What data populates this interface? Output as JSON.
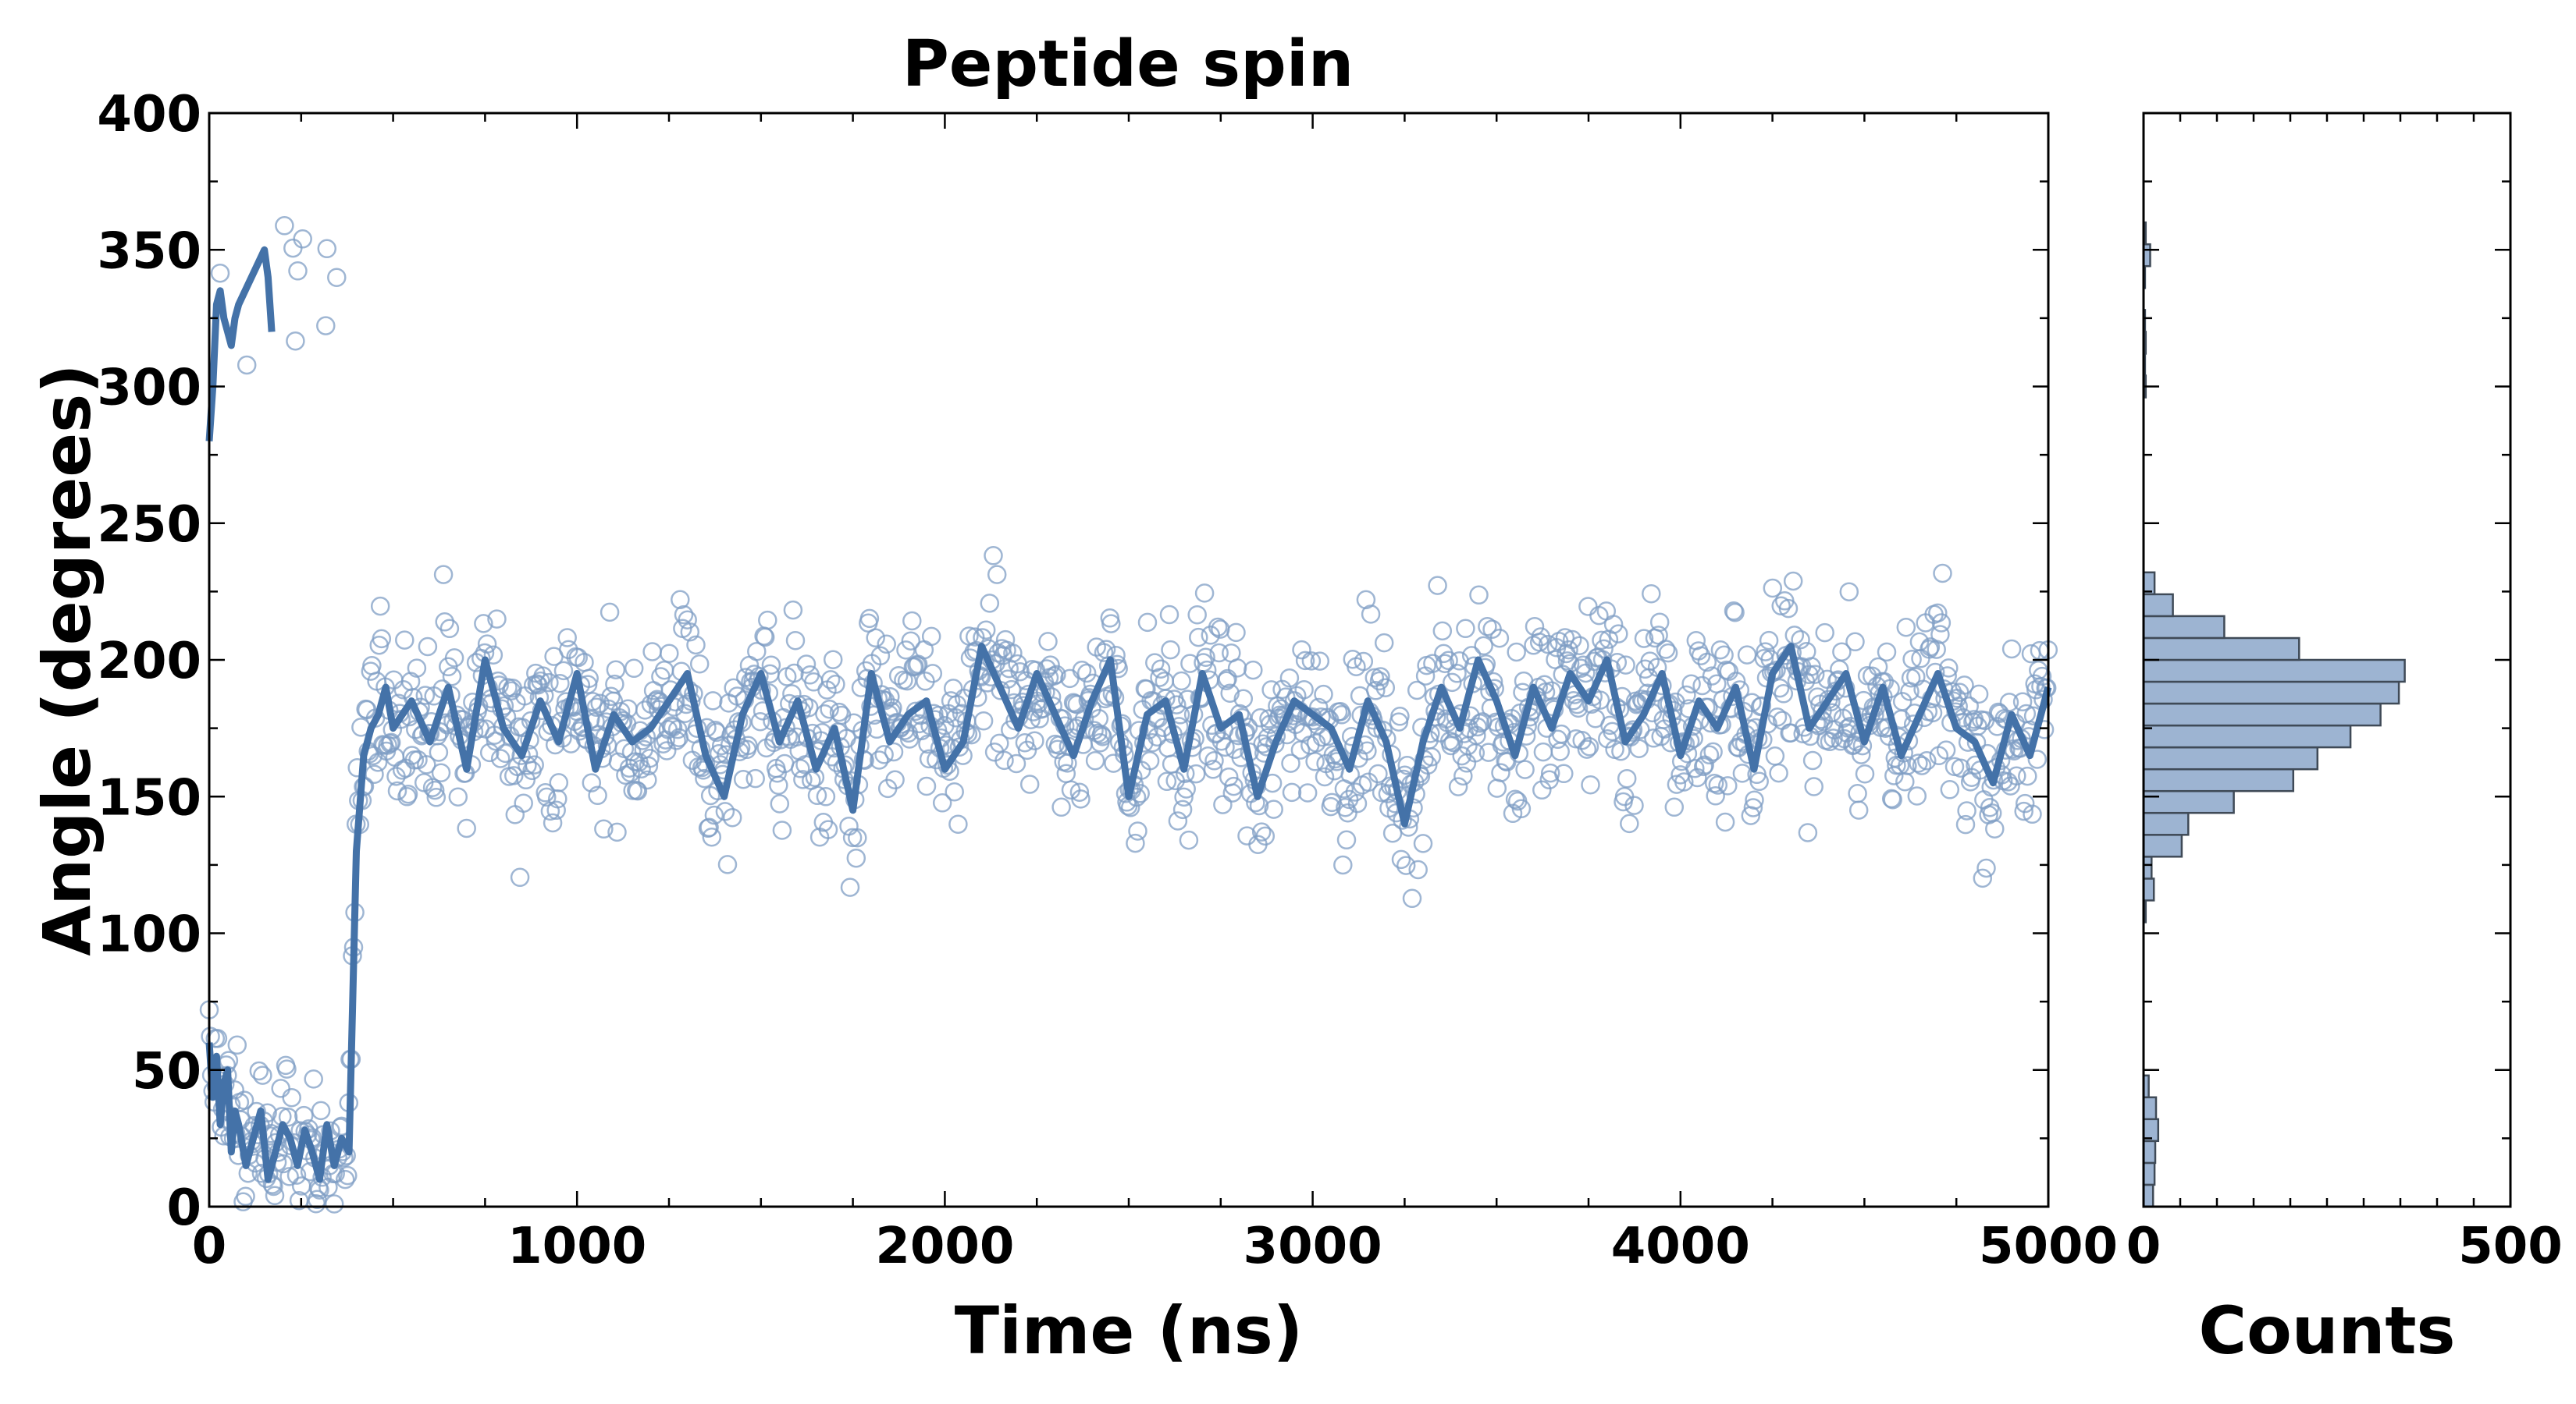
{
  "colors": {
    "accent": "#4472a8",
    "scatter_edge": "#7f9ec4",
    "hist_fill": "#9db4d2",
    "hist_edge": "#3f4a57",
    "frame": "#000000"
  },
  "chart_data": [
    {
      "type": "scatter",
      "title": "Peptide spin",
      "xlabel": "Time (ns)",
      "ylabel": "Angle (degrees)",
      "xlim": [
        0,
        5000
      ],
      "ylim": [
        0,
        400
      ],
      "x_ticks": [
        "0",
        "1000",
        "2000",
        "3000",
        "4000",
        "5000"
      ],
      "y_ticks": [
        "0",
        "50",
        "100",
        "150",
        "200",
        "250",
        "300",
        "350",
        "400"
      ],
      "grid": false,
      "legend": "none",
      "description": "Open-circle scatter of angle samples with a thick smoothed running-average line. ~0-380 ns angle sits near 0-60 (wrapping to 300-360); at ~400 ns it rises sharply to ~180 where it fluctuates 120-240 until 5000 ns.",
      "series": [
        {
          "name": "running average",
          "x": [
            0,
            10,
            20,
            30,
            40,
            50,
            60,
            70,
            80,
            100,
            120,
            140,
            160,
            180,
            200,
            220,
            240,
            260,
            280,
            300,
            320,
            340,
            360,
            380,
            400,
            420,
            440,
            460,
            480,
            500,
            550,
            600,
            650,
            700,
            750,
            800,
            850,
            900,
            950,
            1000,
            1050,
            1100,
            1150,
            1200,
            1250,
            1300,
            1350,
            1400,
            1450,
            1500,
            1550,
            1600,
            1650,
            1700,
            1750,
            1800,
            1850,
            1900,
            1950,
            2000,
            2050,
            2100,
            2150,
            2200,
            2250,
            2300,
            2350,
            2400,
            2450,
            2500,
            2550,
            2600,
            2650,
            2700,
            2750,
            2800,
            2850,
            2900,
            2950,
            3000,
            3050,
            3100,
            3150,
            3200,
            3250,
            3300,
            3350,
            3400,
            3450,
            3500,
            3550,
            3600,
            3650,
            3700,
            3750,
            3800,
            3850,
            3900,
            3950,
            4000,
            4050,
            4100,
            4150,
            4200,
            4250,
            4300,
            4350,
            4400,
            4450,
            4500,
            4550,
            4600,
            4650,
            4700,
            4750,
            4800,
            4850,
            4900,
            4950,
            5000
          ],
          "y": [
            60,
            40,
            55,
            30,
            45,
            50,
            20,
            35,
            30,
            15,
            25,
            35,
            10,
            20,
            30,
            25,
            15,
            28,
            20,
            10,
            30,
            15,
            25,
            20,
            130,
            165,
            175,
            180,
            190,
            175,
            185,
            170,
            190,
            160,
            200,
            175,
            165,
            185,
            170,
            195,
            160,
            180,
            170,
            175,
            185,
            195,
            165,
            150,
            180,
            195,
            170,
            185,
            160,
            175,
            145,
            195,
            170,
            180,
            185,
            160,
            170,
            205,
            190,
            175,
            195,
            180,
            165,
            185,
            200,
            150,
            180,
            185,
            160,
            195,
            175,
            180,
            150,
            170,
            185,
            180,
            175,
            160,
            185,
            170,
            140,
            170,
            190,
            175,
            200,
            185,
            165,
            190,
            175,
            195,
            185,
            200,
            170,
            180,
            195,
            165,
            185,
            175,
            190,
            160,
            195,
            205,
            175,
            185,
            195,
            170,
            190,
            165,
            180,
            195,
            175,
            170,
            155,
            180,
            165,
            190
          ]
        },
        {
          "name": "early wrapped segment",
          "x": [
            0,
            10,
            20,
            30,
            40,
            50,
            60,
            70,
            80,
            150,
            160,
            170
          ],
          "y": [
            280,
            300,
            330,
            335,
            325,
            320,
            315,
            325,
            330,
            350,
            340,
            320
          ]
        }
      ]
    },
    {
      "type": "bar",
      "orientation": "horizontal",
      "xlabel": "Counts",
      "xlim": [
        0,
        500
      ],
      "x_ticks": [
        "0",
        "500"
      ],
      "ylim": [
        0,
        400
      ],
      "bin_width": 8,
      "bins": [
        [
          0,
          13
        ],
        [
          8,
          15
        ],
        [
          16,
          16
        ],
        [
          24,
          20
        ],
        [
          32,
          17
        ],
        [
          40,
          7
        ],
        [
          104,
          3
        ],
        [
          112,
          14
        ],
        [
          120,
          11
        ],
        [
          128,
          52
        ],
        [
          136,
          61
        ],
        [
          144,
          123
        ],
        [
          152,
          204
        ],
        [
          160,
          237
        ],
        [
          168,
          282
        ],
        [
          176,
          323
        ],
        [
          184,
          348
        ],
        [
          192,
          356
        ],
        [
          200,
          212
        ],
        [
          208,
          110
        ],
        [
          216,
          40
        ],
        [
          224,
          15
        ],
        [
          296,
          3
        ],
        [
          304,
          2
        ],
        [
          312,
          3
        ],
        [
          320,
          2
        ],
        [
          336,
          2
        ],
        [
          344,
          9
        ],
        [
          352,
          3
        ]
      ]
    }
  ]
}
